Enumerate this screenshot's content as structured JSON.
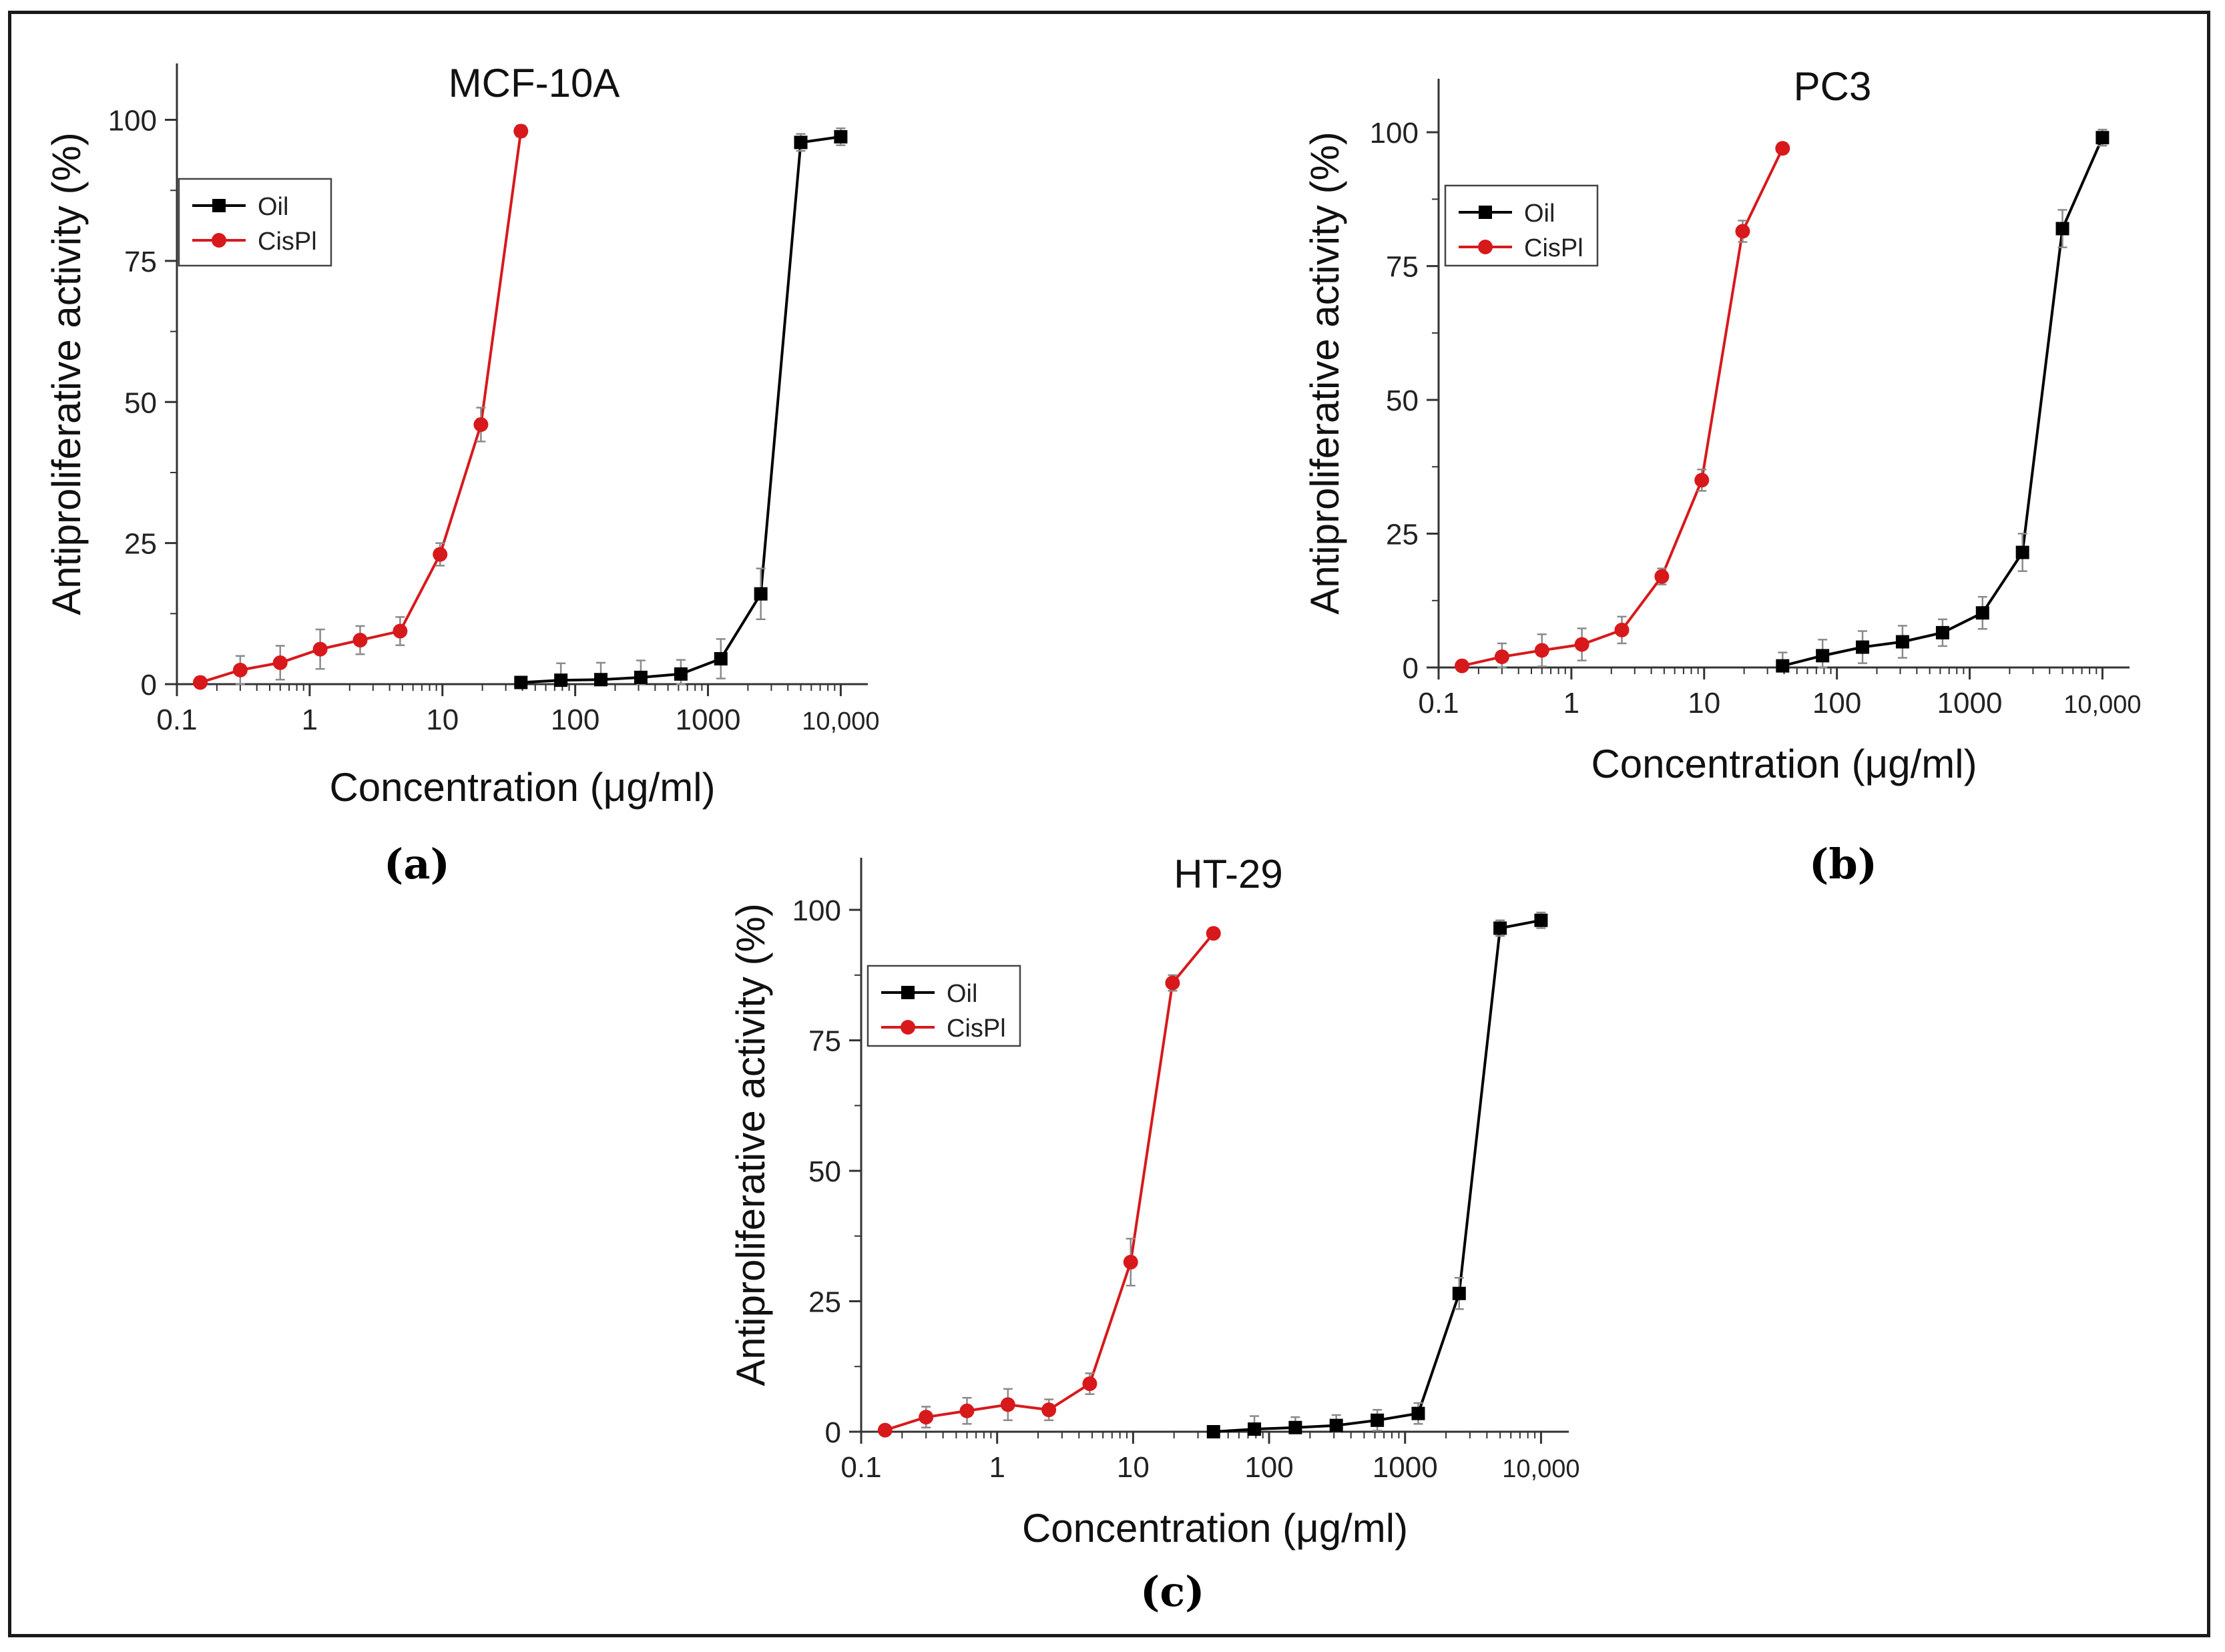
{
  "figure": {
    "panel_labels": [
      "(a)",
      "(b)",
      "(c)"
    ]
  },
  "chart_data": [
    {
      "type": "line",
      "title": "MCF-10A",
      "xlabel": "Concentration (μg/ml)",
      "ylabel": "Antiproliferative activity (%)",
      "xscale": "log",
      "xlim": [
        0.1,
        16000
      ],
      "ylim": [
        0,
        110
      ],
      "xticks": [
        0.1,
        1,
        10,
        100,
        1000,
        10000
      ],
      "xtick_labels": [
        "0.1",
        "1",
        "10",
        "100",
        "1000",
        "10,000"
      ],
      "yticks": [
        0,
        25,
        50,
        75,
        100
      ],
      "ytick_labels": [
        "0",
        "25",
        "50",
        "75",
        "100"
      ],
      "legend_position": "top-left",
      "series": [
        {
          "name": "Oil",
          "color": "#000000",
          "marker": "square",
          "x": [
            39,
            78,
            156,
            312,
            625,
            1250,
            2500,
            5000,
            10000
          ],
          "y": [
            0.3,
            0.7,
            0.8,
            1.2,
            1.8,
            4.5,
            16,
            96,
            97
          ],
          "err": [
            0.5,
            3,
            3,
            3,
            2.5,
            3.5,
            4.5,
            1.5,
            1.5
          ]
        },
        {
          "name": "CisPl",
          "color": "#d7191c",
          "marker": "circle",
          "x": [
            0.15,
            0.3,
            0.6,
            1.2,
            2.4,
            4.8,
            9.6,
            19.5,
            39
          ],
          "y": [
            0.3,
            2.5,
            3.8,
            6.2,
            7.8,
            9.4,
            23,
            46,
            98
          ],
          "err": [
            0.5,
            2.5,
            3,
            3.5,
            2.5,
            2.5,
            2,
            3,
            1
          ]
        }
      ]
    },
    {
      "type": "line",
      "title": "PC3",
      "xlabel": "Concentration (μg/ml)",
      "ylabel": "Antiproliferative activity (%)",
      "xscale": "log",
      "xlim": [
        0.1,
        16000
      ],
      "ylim": [
        0,
        110
      ],
      "xticks": [
        0.1,
        1,
        10,
        100,
        1000,
        10000
      ],
      "xtick_labels": [
        "0.1",
        "1",
        "10",
        "100",
        "1000",
        "10,000"
      ],
      "yticks": [
        0,
        25,
        50,
        75,
        100
      ],
      "ytick_labels": [
        "0",
        "25",
        "50",
        "75",
        "100"
      ],
      "legend_position": "top-left",
      "series": [
        {
          "name": "Oil",
          "color": "#000000",
          "marker": "square",
          "x": [
            39,
            78,
            156,
            312,
            625,
            1250,
            2500,
            5000,
            10000
          ],
          "y": [
            0.3,
            2.2,
            3.8,
            4.8,
            6.5,
            10.2,
            21.5,
            82,
            99
          ],
          "err": [
            2.5,
            3,
            3,
            3,
            2.5,
            3,
            3.5,
            3.5,
            1.5
          ]
        },
        {
          "name": "CisPl",
          "color": "#d7191c",
          "marker": "circle",
          "x": [
            0.15,
            0.3,
            0.6,
            1.2,
            2.4,
            4.8,
            9.6,
            19.5,
            39
          ],
          "y": [
            0.3,
            2,
            3.2,
            4.3,
            7,
            17,
            35,
            81.5,
            97
          ],
          "err": [
            0.5,
            2.5,
            3,
            3,
            2.5,
            1.5,
            2,
            2,
            1
          ]
        }
      ]
    },
    {
      "type": "line",
      "title": "HT-29",
      "xlabel": "Concentration (μg/ml)",
      "ylabel": "Antiproliferative activity (%)",
      "xscale": "log",
      "xlim": [
        0.1,
        16000
      ],
      "ylim": [
        0,
        110
      ],
      "xticks": [
        0.1,
        1,
        10,
        100,
        1000,
        10000
      ],
      "xtick_labels": [
        "0.1",
        "1",
        "10",
        "100",
        "1000",
        "10,000"
      ],
      "yticks": [
        0,
        25,
        50,
        75,
        100
      ],
      "ytick_labels": [
        "0",
        "25",
        "50",
        "75",
        "100"
      ],
      "legend_position": "top-left",
      "series": [
        {
          "name": "Oil",
          "color": "#000000",
          "marker": "square",
          "x": [
            39,
            78,
            156,
            312,
            625,
            1250,
            2500,
            5000,
            10000
          ],
          "y": [
            0,
            0.5,
            0.8,
            1.2,
            2.2,
            3.5,
            26.5,
            96.5,
            98
          ],
          "err": [
            0.5,
            2.5,
            2,
            2,
            2,
            2,
            3,
            1.5,
            1.5
          ]
        },
        {
          "name": "CisPl",
          "color": "#d7191c",
          "marker": "circle",
          "x": [
            0.15,
            0.3,
            0.6,
            1.2,
            2.4,
            4.8,
            9.6,
            19.5,
            39
          ],
          "y": [
            0.3,
            2.8,
            4,
            5.2,
            4.2,
            9.2,
            32.5,
            86,
            95.5
          ],
          "err": [
            0.5,
            2,
            2.5,
            3,
            2,
            2,
            4.5,
            1.5,
            1
          ]
        }
      ]
    }
  ]
}
